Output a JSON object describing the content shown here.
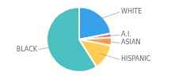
{
  "chart_data": {
    "type": "pie",
    "categories": [
      "WHITE",
      "A.I.",
      "ASIAN",
      "HISPANIC",
      "BLACK"
    ],
    "values": [
      22,
      2,
      4,
      13,
      59
    ]
  }
}
